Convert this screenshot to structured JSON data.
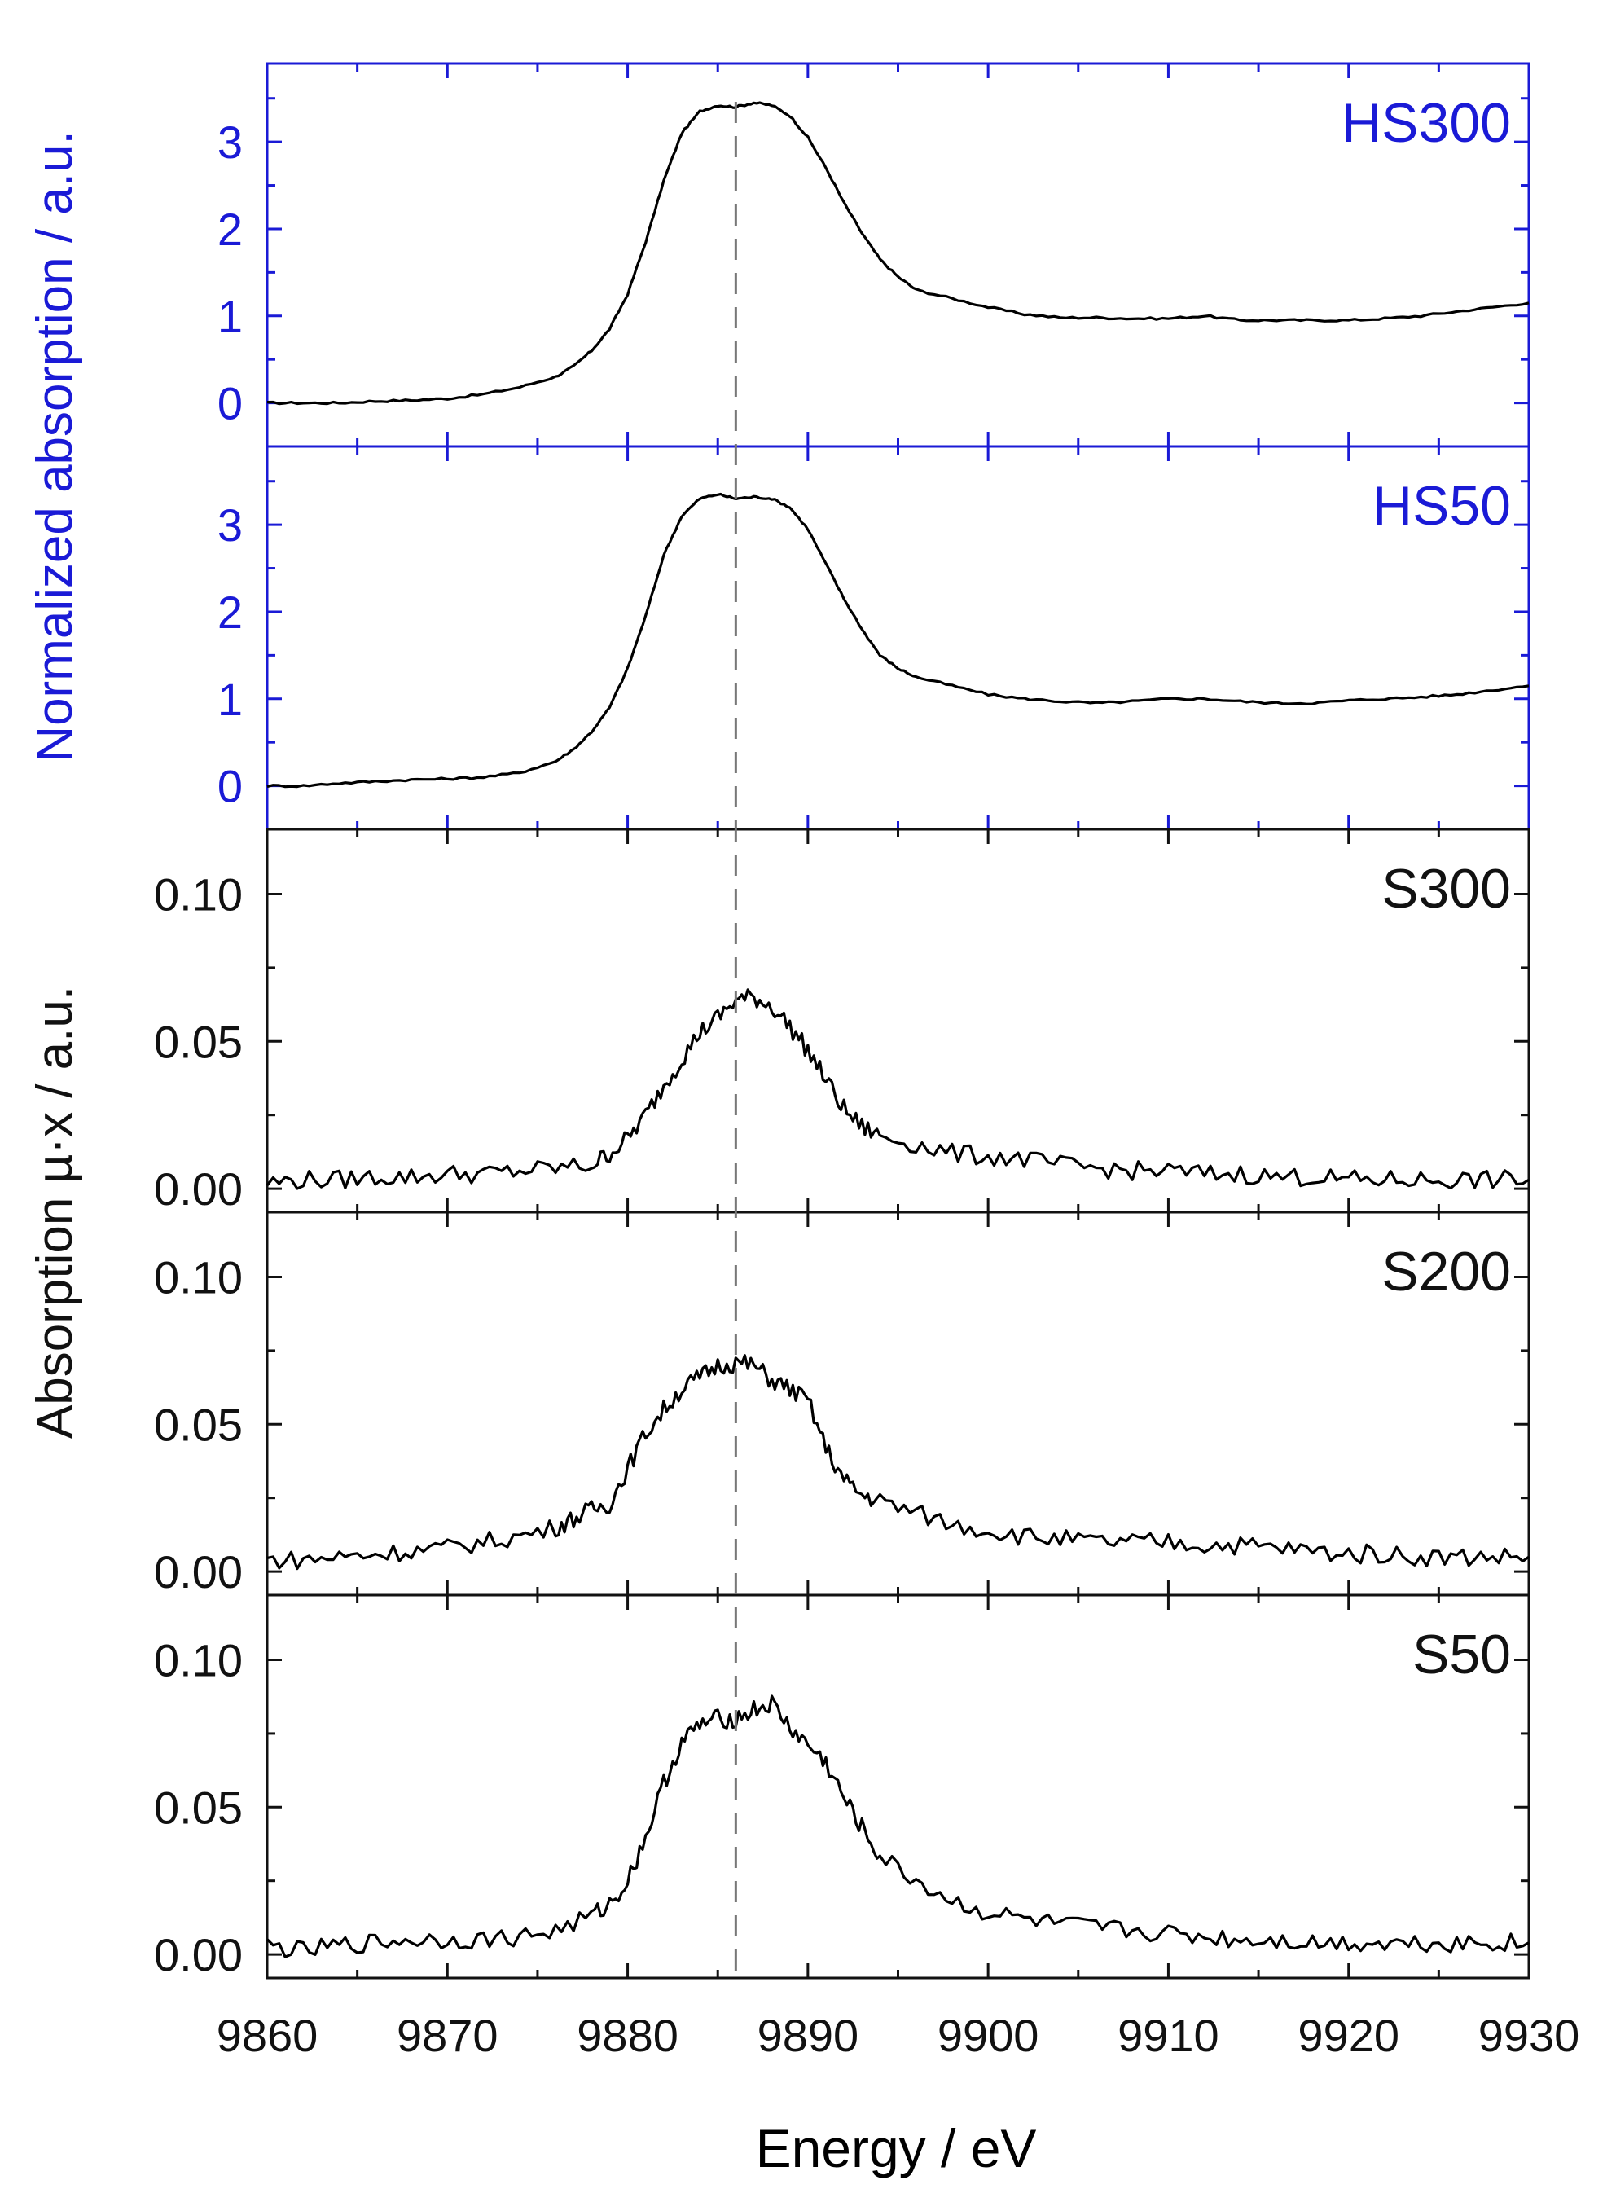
{
  "figure": {
    "ylabel_top": "Normalized absorption / a.u.",
    "ylabel_bottom": "Absorption µ·x / a.u.",
    "xlabel": "Energy / eV",
    "dashed_line_energy": 9886,
    "xlim": [
      9860,
      9930
    ],
    "xticks": [
      "9860",
      "9870",
      "9880",
      "9890",
      "9900",
      "9910",
      "9920",
      "9930"
    ],
    "colors": {
      "top_axes": "#1a1ad6",
      "bottom_axes": "#111111",
      "line": "#000000",
      "dashed": "#777777"
    }
  },
  "chart_data": [
    {
      "type": "line",
      "title": "HS300",
      "panel_group": "top",
      "ylim": [
        -0.5,
        3.9
      ],
      "yticks": [
        "0",
        "1",
        "2",
        "3"
      ],
      "x": [
        9860,
        9862,
        9864,
        9866,
        9868,
        9870,
        9872,
        9874,
        9876,
        9877,
        9878,
        9879,
        9880,
        9881,
        9882,
        9883,
        9884,
        9885,
        9886,
        9887,
        9888,
        9889,
        9890,
        9891,
        9892,
        9893,
        9894,
        9895,
        9896,
        9898,
        9900,
        9902,
        9904,
        9906,
        9908,
        9910,
        9912,
        9914,
        9916,
        9918,
        9920,
        9922,
        9924,
        9926,
        9928,
        9930
      ],
      "values": [
        0.0,
        0.0,
        0.0,
        0.02,
        0.03,
        0.05,
        0.1,
        0.18,
        0.3,
        0.42,
        0.6,
        0.85,
        1.25,
        1.85,
        2.55,
        3.1,
        3.35,
        3.42,
        3.4,
        3.45,
        3.42,
        3.3,
        3.05,
        2.7,
        2.3,
        1.95,
        1.65,
        1.45,
        1.3,
        1.2,
        1.1,
        1.02,
        0.98,
        0.98,
        0.97,
        0.97,
        1.0,
        0.95,
        0.95,
        0.95,
        0.95,
        0.97,
        1.0,
        1.05,
        1.1,
        1.15
      ]
    },
    {
      "type": "line",
      "title": "HS50",
      "panel_group": "top",
      "ylim": [
        -0.5,
        3.9
      ],
      "yticks": [
        "0",
        "1",
        "2",
        "3"
      ],
      "x": [
        9860,
        9862,
        9864,
        9866,
        9868,
        9870,
        9872,
        9874,
        9876,
        9877,
        9878,
        9879,
        9880,
        9881,
        9882,
        9883,
        9884,
        9885,
        9886,
        9887,
        9888,
        9889,
        9890,
        9891,
        9892,
        9893,
        9894,
        9895,
        9896,
        9898,
        9900,
        9902,
        9904,
        9906,
        9908,
        9910,
        9912,
        9914,
        9916,
        9918,
        9920,
        9922,
        9924,
        9926,
        9928,
        9930
      ],
      "values": [
        0.0,
        0.0,
        0.03,
        0.05,
        0.07,
        0.08,
        0.1,
        0.15,
        0.28,
        0.42,
        0.62,
        0.9,
        1.35,
        1.95,
        2.65,
        3.1,
        3.3,
        3.35,
        3.3,
        3.32,
        3.3,
        3.2,
        2.95,
        2.55,
        2.15,
        1.8,
        1.5,
        1.35,
        1.25,
        1.15,
        1.05,
        1.0,
        0.97,
        0.95,
        0.97,
        1.0,
        1.0,
        0.97,
        0.95,
        0.95,
        0.98,
        1.0,
        1.02,
        1.05,
        1.1,
        1.15
      ]
    },
    {
      "type": "line",
      "title": "S300",
      "panel_group": "bottom",
      "ylim": [
        -0.008,
        0.122
      ],
      "yticks": [
        "0.00",
        "0.05",
        "0.10"
      ],
      "x": [
        9860,
        9862,
        9864,
        9866,
        9868,
        9870,
        9872,
        9874,
        9876,
        9878,
        9879,
        9880,
        9881,
        9882,
        9883,
        9884,
        9885,
        9886,
        9887,
        9888,
        9889,
        9890,
        9891,
        9892,
        9893,
        9894,
        9896,
        9898,
        9900,
        9902,
        9904,
        9906,
        9908,
        9910,
        9912,
        9914,
        9916,
        9918,
        9920,
        9922,
        9924,
        9926,
        9928,
        9930
      ],
      "values": [
        0.002,
        0.003,
        0.003,
        0.004,
        0.004,
        0.005,
        0.005,
        0.006,
        0.007,
        0.008,
        0.012,
        0.017,
        0.025,
        0.035,
        0.044,
        0.053,
        0.058,
        0.064,
        0.065,
        0.062,
        0.055,
        0.047,
        0.037,
        0.027,
        0.021,
        0.018,
        0.015,
        0.012,
        0.011,
        0.01,
        0.008,
        0.007,
        0.006,
        0.006,
        0.005,
        0.005,
        0.004,
        0.004,
        0.003,
        0.003,
        0.003,
        0.003,
        0.003,
        0.003
      ]
    },
    {
      "type": "line",
      "title": "S200",
      "panel_group": "bottom",
      "ylim": [
        -0.008,
        0.122
      ],
      "yticks": [
        "0.00",
        "0.05",
        "0.10"
      ],
      "x": [
        9860,
        9862,
        9864,
        9866,
        9868,
        9870,
        9872,
        9874,
        9876,
        9877,
        9878,
        9879,
        9880,
        9881,
        9882,
        9883,
        9884,
        9885,
        9886,
        9887,
        9888,
        9889,
        9890,
        9891,
        9892,
        9893,
        9894,
        9896,
        9898,
        9900,
        9902,
        9904,
        9906,
        9908,
        9910,
        9912,
        9914,
        9916,
        9918,
        9920,
        9922,
        9924,
        9926,
        9928,
        9930
      ],
      "values": [
        0.004,
        0.004,
        0.005,
        0.006,
        0.007,
        0.008,
        0.01,
        0.012,
        0.015,
        0.018,
        0.021,
        0.023,
        0.035,
        0.047,
        0.055,
        0.062,
        0.066,
        0.07,
        0.071,
        0.07,
        0.065,
        0.062,
        0.058,
        0.042,
        0.031,
        0.026,
        0.024,
        0.02,
        0.016,
        0.014,
        0.012,
        0.011,
        0.01,
        0.01,
        0.01,
        0.009,
        0.009,
        0.008,
        0.007,
        0.006,
        0.006,
        0.005,
        0.005,
        0.005,
        0.005
      ]
    },
    {
      "type": "line",
      "title": "S50",
      "panel_group": "bottom",
      "ylim": [
        -0.008,
        0.122
      ],
      "yticks": [
        "0.00",
        "0.05",
        "0.10"
      ],
      "x": [
        9860,
        9862,
        9864,
        9866,
        9868,
        9870,
        9872,
        9874,
        9876,
        9878,
        9879,
        9880,
        9881,
        9882,
        9883,
        9884,
        9885,
        9886,
        9887,
        9888,
        9889,
        9890,
        9891,
        9892,
        9893,
        9894,
        9896,
        9898,
        9900,
        9902,
        9904,
        9906,
        9908,
        9910,
        9912,
        9914,
        9916,
        9918,
        9920,
        9922,
        9924,
        9926,
        9928,
        9930
      ],
      "values": [
        0.003,
        0.001,
        0.003,
        0.004,
        0.005,
        0.005,
        0.005,
        0.006,
        0.008,
        0.013,
        0.017,
        0.025,
        0.04,
        0.058,
        0.072,
        0.078,
        0.08,
        0.08,
        0.083,
        0.085,
        0.077,
        0.071,
        0.065,
        0.053,
        0.043,
        0.033,
        0.025,
        0.018,
        0.014,
        0.012,
        0.01,
        0.009,
        0.008,
        0.007,
        0.006,
        0.005,
        0.005,
        0.004,
        0.004,
        0.004,
        0.004,
        0.004,
        0.004,
        0.004
      ]
    }
  ]
}
